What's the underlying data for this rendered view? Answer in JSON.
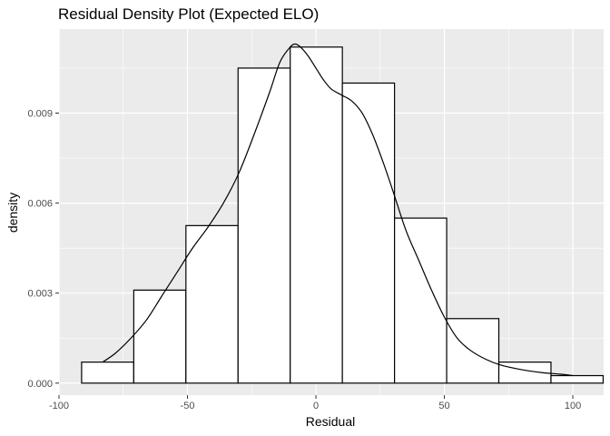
{
  "chart_data": {
    "type": "bar",
    "title": "Residual Density Plot (Expected ELO)",
    "xlabel": "Residual",
    "ylabel": "density",
    "xlim": [
      -100,
      112
    ],
    "ylim": [
      -0.0004,
      0.0118
    ],
    "x_ticks": [
      -100,
      -50,
      0,
      50,
      100
    ],
    "x_tick_labels": [
      "-100",
      "-50",
      "0",
      "50",
      "100"
    ],
    "y_ticks": [
      0.0,
      0.003,
      0.006,
      0.009
    ],
    "y_tick_labels": [
      "0.000",
      "0.003",
      "0.006",
      "0.009"
    ],
    "grid": true,
    "background": "#ebebeb",
    "histogram": {
      "bins": [
        {
          "x0": -91.2,
          "x1": -70.9,
          "density": 0.0007
        },
        {
          "x0": -70.9,
          "x1": -50.6,
          "density": 0.0031
        },
        {
          "x0": -50.6,
          "x1": -30.3,
          "density": 0.00525
        },
        {
          "x0": -30.3,
          "x1": -10.0,
          "density": 0.0105
        },
        {
          "x0": -10.0,
          "x1": 10.3,
          "density": 0.0112
        },
        {
          "x0": 10.3,
          "x1": 30.6,
          "density": 0.01
        },
        {
          "x0": 30.6,
          "x1": 50.9,
          "density": 0.0055
        },
        {
          "x0": 50.9,
          "x1": 71.2,
          "density": 0.00215
        },
        {
          "x0": 71.2,
          "x1": 91.5,
          "density": 0.0007
        },
        {
          "x0": 91.5,
          "x1": 111.8,
          "density": 0.00025
        }
      ],
      "fill": "#ffffff",
      "stroke": "#000000"
    },
    "density_curve": {
      "x": [
        -83,
        -78,
        -72,
        -66,
        -60,
        -54,
        -48,
        -42,
        -36,
        -30,
        -24,
        -18,
        -14,
        -10,
        -8,
        -6,
        -3,
        0,
        3,
        6,
        10,
        14,
        18,
        22,
        26,
        30,
        35,
        40,
        45,
        50,
        55,
        60,
        66,
        72,
        80,
        88,
        95,
        100
      ],
      "y": [
        0.0007,
        0.001,
        0.0015,
        0.0021,
        0.0029,
        0.0037,
        0.0045,
        0.0052,
        0.006,
        0.007,
        0.0083,
        0.0097,
        0.0107,
        0.0112,
        0.0113,
        0.0112,
        0.0109,
        0.0105,
        0.0101,
        0.0098,
        0.0096,
        0.0094,
        0.009,
        0.0083,
        0.0074,
        0.0064,
        0.0051,
        0.0041,
        0.0031,
        0.0022,
        0.0015,
        0.0011,
        0.0008,
        0.0006,
        0.00045,
        0.00035,
        0.0003,
        0.00025
      ],
      "color": "#000000"
    }
  }
}
